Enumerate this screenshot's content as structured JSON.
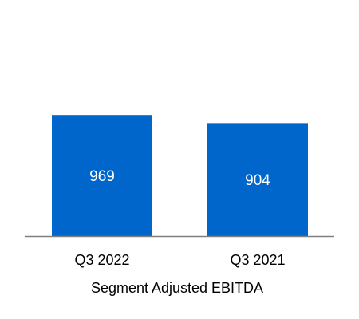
{
  "chart_data": {
    "type": "bar",
    "categories": [
      "Q3 2022",
      "Q3 2021"
    ],
    "values": [
      969,
      904
    ],
    "data_labels": [
      "969",
      "904"
    ],
    "xlabel": "Segment Adjusted EBITDA",
    "ylabel": "",
    "ylim": [
      0,
      1800
    ],
    "grid": false,
    "legend": "none",
    "bar_color": "#0066cc",
    "axis_color": "#808080",
    "label_color": "#ffffff",
    "text_color": "#000000"
  }
}
